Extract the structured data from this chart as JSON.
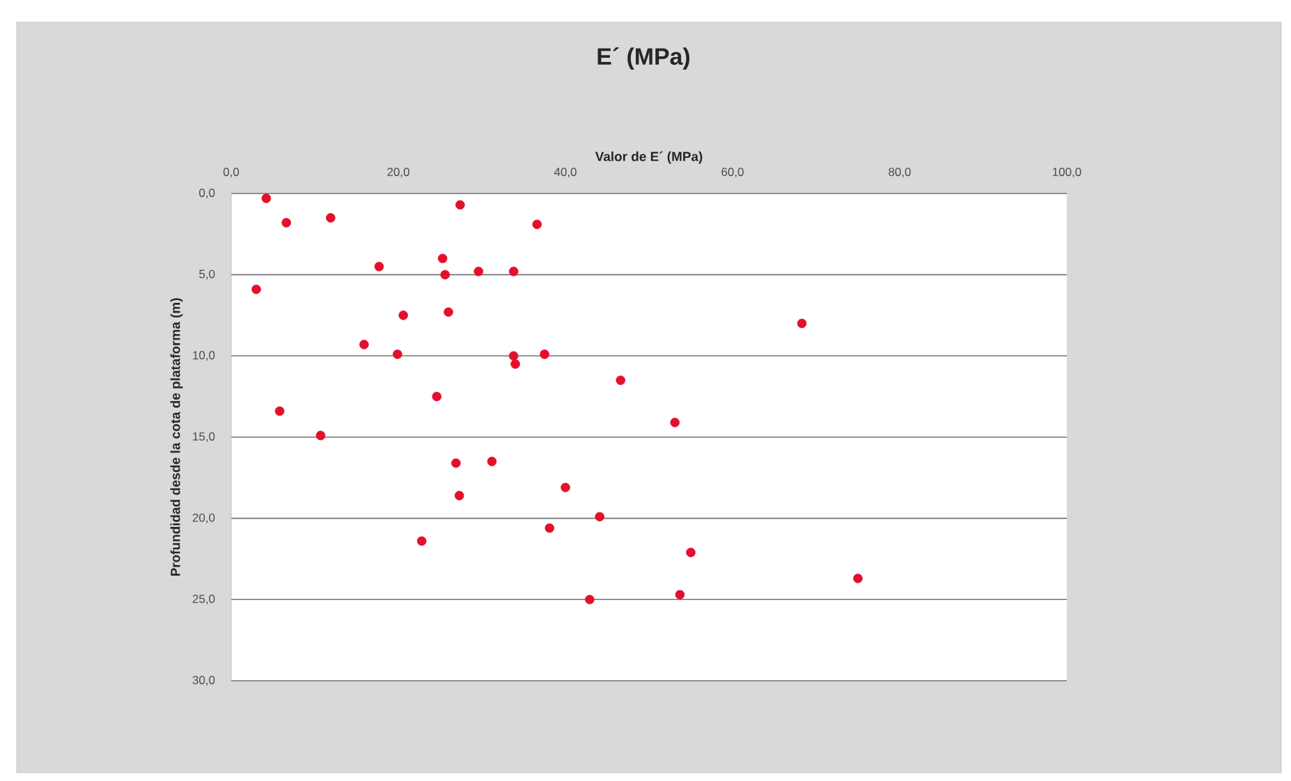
{
  "chart_data": {
    "type": "scatter",
    "title": "E´ (MPa)",
    "xlabel": "Valor de E´ (MPa)",
    "ylabel": "Profundidad desde la cota de plataforma (m)",
    "xlim": [
      0,
      100
    ],
    "xticks": [
      {
        "value": 0,
        "label": "0,0"
      },
      {
        "value": 20,
        "label": "20,0"
      },
      {
        "value": 40,
        "label": "40,0"
      },
      {
        "value": 60,
        "label": "60,0"
      },
      {
        "value": 80,
        "label": "80,0"
      },
      {
        "value": 100,
        "label": "100,0"
      }
    ],
    "ylim": [
      30,
      0
    ],
    "yticks": [
      {
        "value": 0,
        "label": "0,0"
      },
      {
        "value": 5,
        "label": "5,0"
      },
      {
        "value": 10,
        "label": "10,0"
      },
      {
        "value": 15,
        "label": "15,0"
      },
      {
        "value": 20,
        "label": "20,0"
      },
      {
        "value": 25,
        "label": "25,0"
      },
      {
        "value": 30,
        "label": "30,0"
      }
    ],
    "grid": "y",
    "x": [
      4.2,
      6.6,
      11.9,
      27.4,
      36.6,
      17.7,
      25.3,
      25.6,
      29.6,
      33.8,
      3.0,
      20.6,
      26.0,
      15.9,
      19.9,
      33.8,
      34.0,
      37.5,
      24.6,
      5.8,
      10.7,
      26.9,
      31.2,
      27.3,
      22.8,
      38.1,
      40.0,
      68.3,
      46.6,
      53.1,
      44.1,
      55.0,
      75.0,
      53.7,
      42.9
    ],
    "series": [
      {
        "color": "#e3102c",
        "values": [
          0.3,
          1.8,
          1.5,
          0.7,
          1.9,
          4.5,
          4.0,
          5.0,
          4.8,
          4.8,
          5.9,
          7.5,
          7.3,
          9.3,
          9.9,
          10.0,
          10.5,
          9.9,
          12.5,
          13.4,
          14.9,
          16.6,
          16.5,
          18.6,
          21.4,
          20.6,
          18.1,
          8.0,
          11.5,
          14.1,
          19.9,
          22.1,
          23.7,
          24.7,
          25.0
        ]
      }
    ]
  }
}
